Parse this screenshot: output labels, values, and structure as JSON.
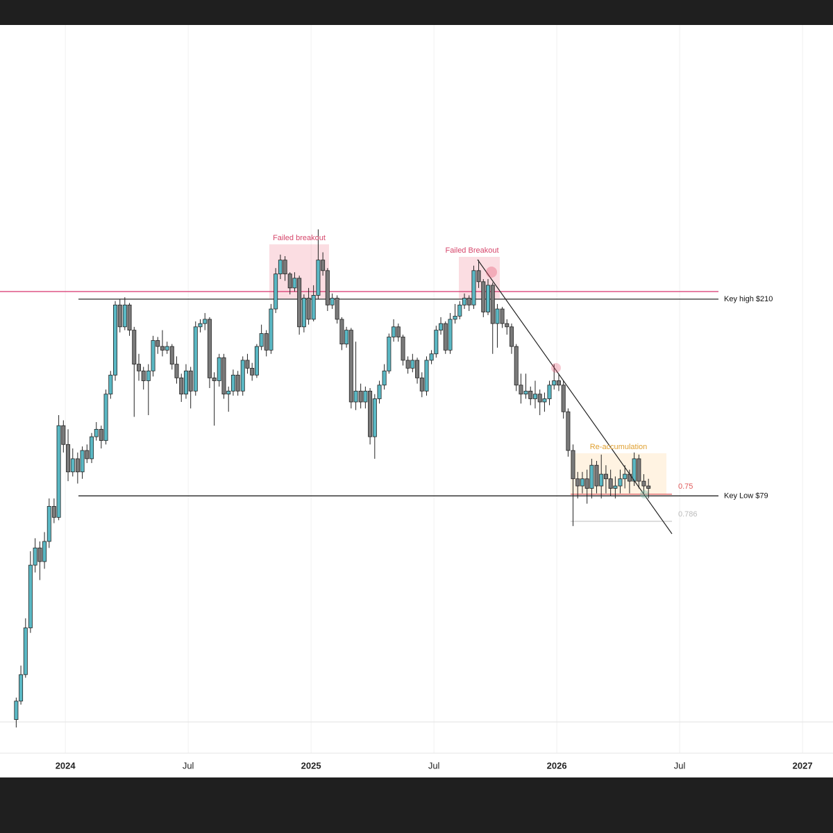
{
  "chart_data": {
    "type": "candlestick",
    "log_scale": true,
    "grid": true,
    "xlim": [
      2023.734,
      2027.124
    ],
    "ylim": [
      22,
      820
    ],
    "xticks": [
      2024,
      {
        "value": 2024.5,
        "label": "Jul"
      },
      2025,
      {
        "value": 2025.5,
        "label": "Jul"
      },
      2026,
      {
        "value": 2026.5,
        "label": "Jul"
      },
      2027
    ],
    "colors": {
      "up": "#5ab8c4",
      "down": "#7a7a7a",
      "wick": "#222222"
    },
    "x": [
      2023.8,
      2023.819,
      2023.838,
      2023.858,
      2023.877,
      2023.896,
      2023.915,
      2023.934,
      2023.954,
      2023.973,
      2023.992,
      2024.011,
      2024.03,
      2024.05,
      2024.069,
      2024.088,
      2024.107,
      2024.126,
      2024.146,
      2024.165,
      2024.184,
      2024.203,
      2024.222,
      2024.242,
      2024.261,
      2024.28,
      2024.299,
      2024.318,
      2024.338,
      2024.357,
      2024.376,
      2024.395,
      2024.414,
      2024.434,
      2024.453,
      2024.472,
      2024.491,
      2024.51,
      2024.53,
      2024.549,
      2024.568,
      2024.587,
      2024.606,
      2024.626,
      2024.645,
      2024.664,
      2024.683,
      2024.702,
      2024.722,
      2024.741,
      2024.76,
      2024.779,
      2024.798,
      2024.818,
      2024.837,
      2024.856,
      2024.875,
      2024.894,
      2024.914,
      2024.933,
      2024.952,
      2024.971,
      2024.99,
      2025.01,
      2025.029,
      2025.048,
      2025.067,
      2025.086,
      2025.106,
      2025.125,
      2025.144,
      2025.163,
      2025.182,
      2025.202,
      2025.221,
      2025.24,
      2025.259,
      2025.278,
      2025.298,
      2025.317,
      2025.336,
      2025.355,
      2025.374,
      2025.394,
      2025.413,
      2025.432,
      2025.451,
      2025.47,
      2025.49,
      2025.509,
      2025.528,
      2025.547,
      2025.566,
      2025.586,
      2025.605,
      2025.624,
      2025.643,
      2025.662,
      2025.682,
      2025.701,
      2025.72,
      2025.739,
      2025.758,
      2025.778,
      2025.797,
      2025.816,
      2025.835,
      2025.854,
      2025.874,
      2025.893,
      2025.912,
      2025.931,
      2025.95,
      2025.97,
      2025.989,
      2026.008,
      2026.027,
      2026.046,
      2026.066,
      2026.085,
      2026.104,
      2026.123,
      2026.142,
      2026.162,
      2026.181,
      2026.2,
      2026.219,
      2026.238,
      2026.258,
      2026.277,
      2026.296,
      2026.315,
      2026.334,
      2026.354,
      2026.373
    ],
    "open": [
      26,
      28.5,
      32.5,
      41,
      56,
      61,
      57,
      63,
      75,
      71,
      112,
      102,
      89,
      95,
      89,
      99,
      95,
      106,
      110,
      104,
      131,
      144,
      204,
      183,
      204,
      180,
      152,
      147,
      140,
      147,
      171,
      166,
      163,
      166,
      152,
      142,
      131,
      147,
      133,
      183,
      186,
      190,
      142,
      140,
      157,
      131,
      133,
      144,
      133,
      155,
      149,
      144,
      166,
      177,
      163,
      200,
      238,
      255,
      238,
      222,
      233,
      183,
      211,
      190,
      214,
      255,
      242,
      204,
      211,
      190,
      168,
      180,
      126,
      133,
      126,
      133,
      106,
      128,
      137,
      147,
      174,
      183,
      174,
      155,
      149,
      155,
      142,
      133,
      155,
      160,
      180,
      186,
      163,
      190,
      193,
      204,
      211,
      204,
      242,
      229,
      197,
      225,
      186,
      200,
      186,
      183,
      166,
      137,
      131,
      133,
      128,
      131,
      126,
      128,
      137,
      140,
      137,
      120,
      99,
      86,
      83,
      86,
      82,
      92,
      83,
      88,
      86,
      82,
      83,
      86,
      88,
      85,
      95,
      85,
      83
    ],
    "high": [
      29,
      34,
      43,
      60,
      64,
      63,
      66,
      78,
      78,
      118,
      115,
      110,
      100,
      98,
      101,
      102,
      108,
      114,
      112,
      134,
      147,
      208,
      210,
      212,
      206,
      183,
      160,
      150,
      152,
      175,
      174,
      180,
      170,
      168,
      158,
      145,
      152,
      150,
      188,
      190,
      196,
      192,
      146,
      160,
      160,
      136,
      148,
      147,
      158,
      160,
      153,
      168,
      185,
      180,
      205,
      245,
      262,
      260,
      240,
      240,
      236,
      215,
      222,
      225,
      297,
      265,
      245,
      216,
      214,
      192,
      183,
      182,
      170,
      138,
      136,
      135,
      131,
      140,
      152,
      177,
      190,
      186,
      176,
      158,
      160,
      157,
      146,
      158,
      163,
      184,
      192,
      188,
      196,
      205,
      208,
      216,
      214,
      248,
      255,
      232,
      232,
      228,
      205,
      202,
      190,
      186,
      168,
      145,
      145,
      136,
      140,
      134,
      132,
      140,
      152,
      145,
      140,
      122,
      102,
      89,
      89,
      90,
      95,
      94,
      97,
      92,
      90,
      87,
      90,
      92,
      90,
      98,
      97,
      88,
      86
    ],
    "low": [
      25,
      28,
      32,
      40,
      54,
      52,
      55,
      61,
      69,
      70,
      98,
      85,
      87,
      84,
      86,
      93,
      93,
      104,
      100,
      102,
      128,
      140,
      178,
      180,
      175,
      117,
      140,
      134,
      118,
      143,
      160,
      158,
      160,
      148,
      138,
      126,
      128,
      122,
      130,
      178,
      180,
      135,
      112,
      136,
      128,
      120,
      130,
      130,
      130,
      145,
      140,
      142,
      163,
      158,
      160,
      196,
      232,
      230,
      215,
      218,
      176,
      178,
      185,
      188,
      210,
      236,
      198,
      200,
      186,
      163,
      165,
      122,
      121,
      122,
      122,
      102,
      95,
      125,
      134,
      145,
      170,
      170,
      151,
      145,
      146,
      138,
      129,
      130,
      152,
      157,
      176,
      160,
      160,
      186,
      190,
      200,
      198,
      200,
      222,
      192,
      194,
      160,
      165,
      182,
      176,
      160,
      133,
      125,
      128,
      124,
      122,
      118,
      120,
      124,
      134,
      133,
      116,
      96,
      68,
      78,
      80,
      76,
      78,
      80,
      78,
      80,
      79,
      78,
      80,
      82,
      80,
      83,
      82,
      80,
      78
    ],
    "close": [
      28.5,
      32.5,
      41,
      56,
      61,
      57,
      63,
      75,
      71,
      112,
      102,
      89,
      95,
      89,
      99,
      95,
      106,
      110,
      104,
      131,
      144,
      204,
      183,
      204,
      180,
      152,
      147,
      140,
      147,
      171,
      166,
      163,
      166,
      152,
      142,
      131,
      147,
      133,
      183,
      186,
      190,
      142,
      140,
      157,
      131,
      133,
      144,
      133,
      155,
      149,
      144,
      166,
      177,
      163,
      200,
      238,
      255,
      238,
      222,
      233,
      183,
      211,
      190,
      214,
      255,
      242,
      204,
      211,
      190,
      168,
      180,
      126,
      133,
      126,
      133,
      106,
      128,
      137,
      147,
      174,
      183,
      174,
      155,
      149,
      155,
      142,
      133,
      155,
      160,
      180,
      186,
      163,
      190,
      193,
      204,
      211,
      204,
      242,
      229,
      197,
      225,
      186,
      200,
      186,
      183,
      166,
      137,
      131,
      133,
      128,
      131,
      126,
      128,
      137,
      140,
      137,
      120,
      99,
      86,
      83,
      86,
      82,
      92,
      83,
      88,
      86,
      82,
      83,
      86,
      88,
      85,
      95,
      85,
      83,
      82
    ],
    "levels": [
      {
        "label": "Key high $210",
        "value": 210
      },
      {
        "label": "Key Low $79",
        "value": 79
      }
    ],
    "annotations": [
      "Failed breakout",
      "Failed Breakout",
      "Re-accumulation",
      "0.75",
      "0.786"
    ]
  }
}
